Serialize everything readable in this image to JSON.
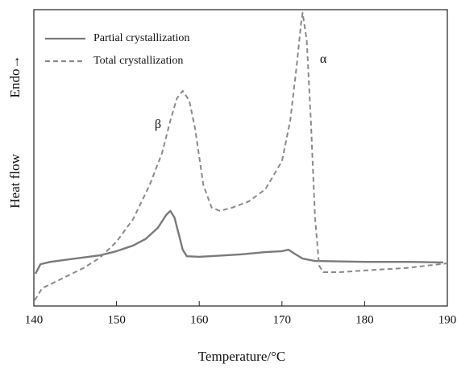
{
  "chart_data": {
    "type": "line",
    "xlabel": "Temperature/°C",
    "ylabel": "Heat flow",
    "ylabel_arrow": "Endo→",
    "xlim": [
      140,
      190
    ],
    "xticks": [
      140,
      150,
      160,
      170,
      180,
      190
    ],
    "ylim": [
      0,
      100
    ],
    "legend": "upper left",
    "annotations": [
      {
        "text": "β",
        "x": 155,
        "y": 61
      },
      {
        "text": "α",
        "x": 175,
        "y": 83
      }
    ],
    "series": [
      {
        "name": "Partial crystallization",
        "color": "#7a7a7a",
        "dash": false,
        "x": [
          140.2,
          140.8,
          142,
          145,
          148,
          150,
          152,
          153.5,
          155,
          156,
          156.5,
          157,
          157.5,
          158,
          158.5,
          160,
          165,
          168,
          170,
          170.8,
          171.5,
          172.5,
          174,
          180,
          185,
          189.5
        ],
        "values": [
          10.9,
          14.1,
          14.9,
          16.0,
          17.1,
          18.5,
          20.4,
          22.6,
          26.4,
          30.7,
          32.1,
          29.9,
          24.5,
          19.0,
          16.8,
          16.6,
          17.4,
          18.2,
          18.5,
          19.0,
          17.7,
          16.0,
          15.2,
          14.9,
          14.9,
          14.7
        ]
      },
      {
        "name": "Total crystallization",
        "color": "#8a8a8a",
        "dash": true,
        "x": [
          140.1,
          141,
          143,
          146,
          148,
          150,
          152,
          154,
          155.5,
          156.5,
          157.3,
          158,
          158.8,
          159.5,
          160.5,
          161.5,
          162.5,
          164,
          166,
          168,
          170,
          171,
          171.8,
          172.3,
          172.5,
          173,
          173.5,
          174,
          174.5,
          175,
          177,
          180,
          185,
          190
        ],
        "values": [
          1.9,
          6.0,
          8.7,
          12.8,
          16.3,
          21.7,
          29.3,
          40.8,
          51.6,
          62.5,
          70.1,
          72.6,
          69.3,
          59.8,
          40.8,
          33.2,
          32.1,
          33.2,
          35.3,
          39.4,
          48.9,
          62.5,
          81.5,
          95.1,
          98.9,
          89.7,
          62.5,
          29.9,
          13.6,
          11.4,
          11.4,
          12.0,
          12.8,
          14.4
        ]
      }
    ]
  }
}
